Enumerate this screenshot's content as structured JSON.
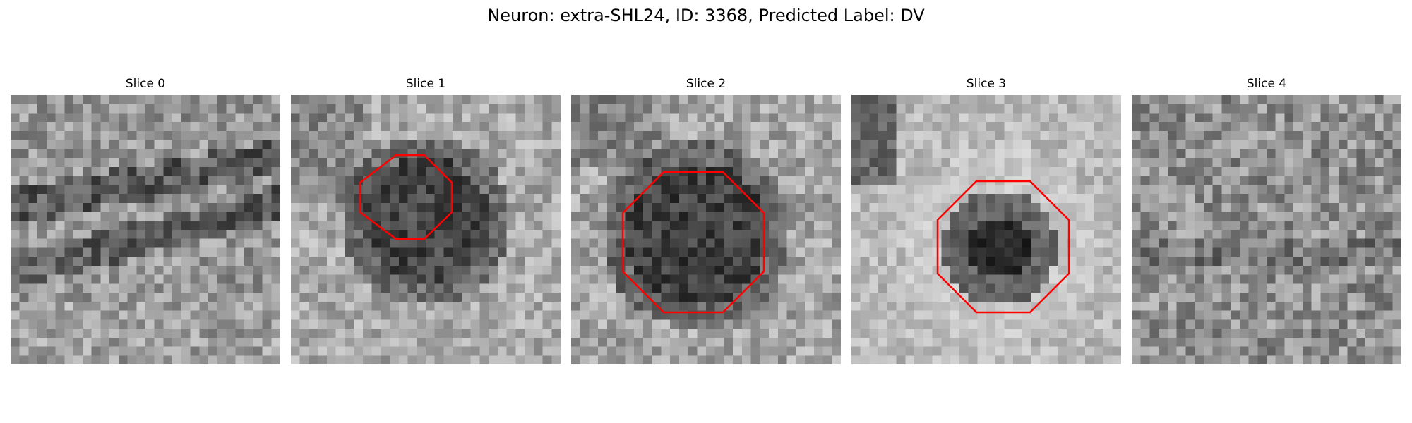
{
  "figure": {
    "title": "Neuron: extra-SHL24, ID: 3368, Predicted Label: DV"
  },
  "panels": [
    {
      "title": "Slice 0",
      "has_roi": false
    },
    {
      "title": "Slice 1",
      "has_roi": true
    },
    {
      "title": "Slice 2",
      "has_roi": true
    },
    {
      "title": "Slice 3",
      "has_roi": true
    },
    {
      "title": "Slice 4",
      "has_roi": false
    }
  ],
  "colors": {
    "roi_outline": "#ff0000",
    "background": "#ffffff",
    "colormap": "gray"
  }
}
